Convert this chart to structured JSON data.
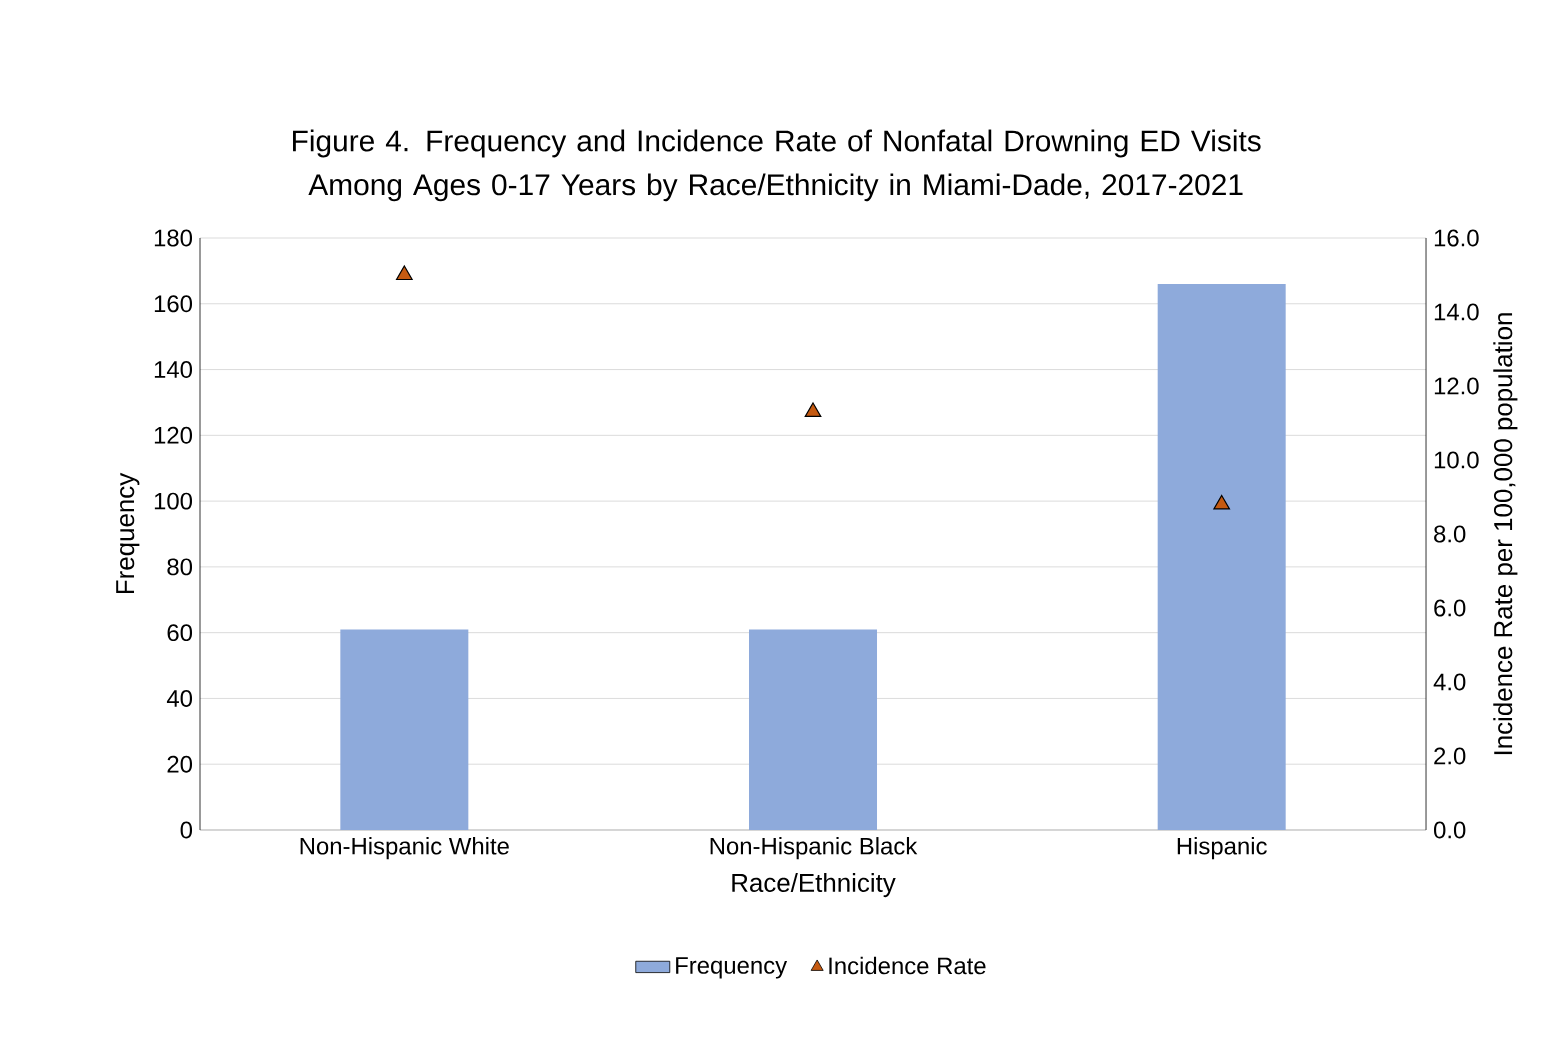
{
  "chart_data": {
    "type": "bar",
    "title": "Figure 4. Frequency and Incidence Rate of Nonfatal Drowning ED Visits Among Ages 0-17 Years by Race/Ethnicity in Miami-Dade, 2017-2021",
    "xlabel": "Race/Ethnicity",
    "ylabel": "Frequency",
    "y2label": "Incidence Rate per 100,000 population",
    "categories": [
      "Non-Hispanic White",
      "Non-Hispanic Black",
      "Hispanic"
    ],
    "series": [
      {
        "name": "Frequency",
        "color": "#8eaadb",
        "values": [
          61,
          61,
          166
        ]
      },
      {
        "name": "Incidence Rate",
        "type": "scatter",
        "axis": "y2",
        "color": "#c55a11",
        "marker": "triangle",
        "values": [
          15.0,
          11.3,
          8.8
        ]
      }
    ],
    "ylim": [
      0,
      180
    ],
    "yticks": [
      0,
      20,
      40,
      60,
      80,
      100,
      120,
      140,
      160,
      180
    ],
    "y2lim": [
      0,
      16
    ],
    "y2ticks": [
      {
        "value": 0,
        "label": "0.0"
      },
      {
        "value": 2,
        "label": "2.0"
      },
      {
        "value": 4,
        "label": "4.0"
      },
      {
        "value": 6,
        "label": "6.0"
      },
      {
        "value": 8,
        "label": "8.0"
      },
      {
        "value": 10,
        "label": "10.0"
      },
      {
        "value": 12,
        "label": "12.0"
      },
      {
        "value": 14,
        "label": "14.0"
      },
      {
        "value": 16,
        "label": "16.0"
      }
    ],
    "grid": "y",
    "legend": "bottom"
  }
}
